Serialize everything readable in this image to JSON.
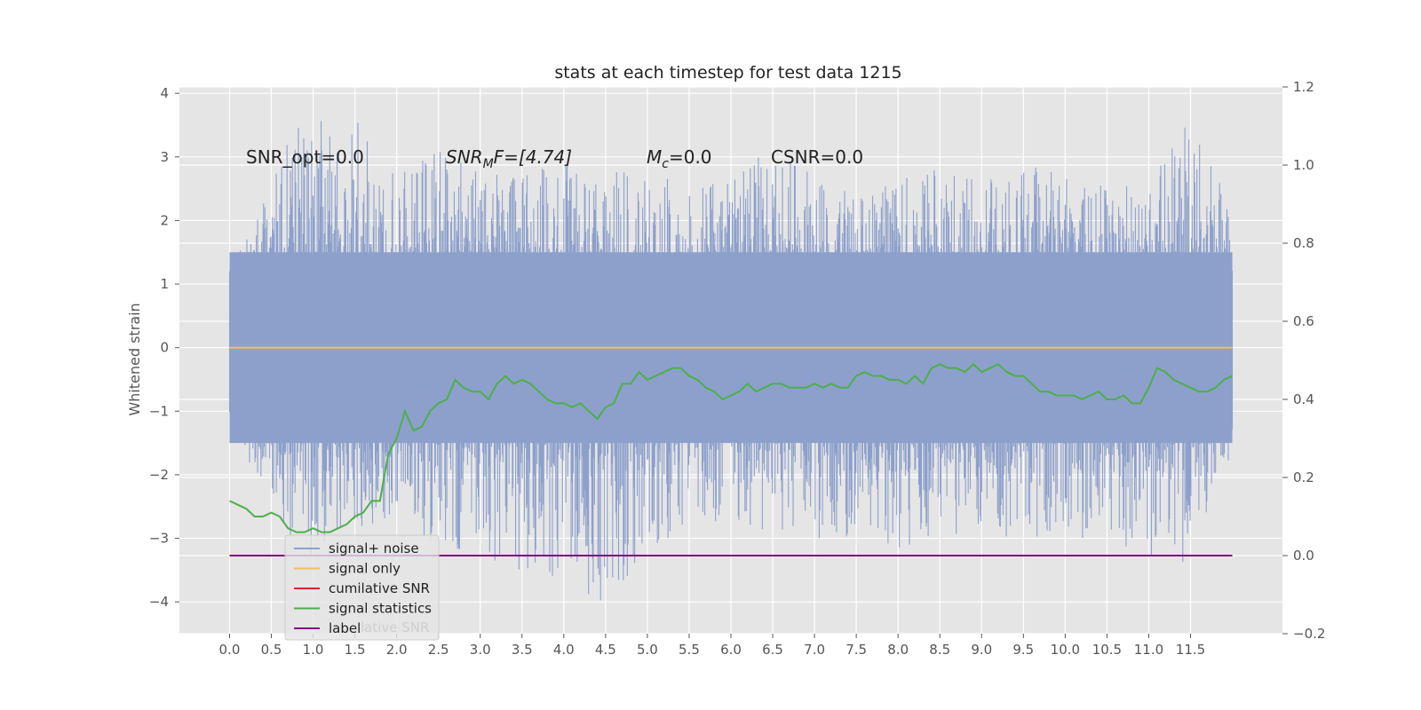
{
  "chart_data": {
    "type": "line",
    "title": "stats at each timestep for test data 1215",
    "ylabel": "Whitened strain",
    "xlim": [
      -0.6,
      12.6
    ],
    "ylim": [
      -4.5,
      4.1
    ],
    "ylim_right": [
      -0.2,
      1.2
    ],
    "x_ticks": [
      "0.0",
      "0.5",
      "1.0",
      "1.5",
      "2.0",
      "2.5",
      "3.0",
      "3.5",
      "4.0",
      "4.5",
      "5.0",
      "5.5",
      "6.0",
      "6.5",
      "7.0",
      "7.5",
      "8.0",
      "8.5",
      "9.0",
      "9.5",
      "10.0",
      "10.5",
      "11.0",
      "11.5"
    ],
    "y_ticks": [
      "4",
      "3",
      "2",
      "1",
      "0",
      "−1",
      "−2",
      "−3",
      "−4"
    ],
    "y_ticks_right": [
      "1.2",
      "1.0",
      "0.8",
      "0.6",
      "0.4",
      "0.2",
      "0.0",
      "−0.2"
    ],
    "grid": true,
    "annotations": {
      "snr_opt": "SNR_opt=0.0",
      "snr_mf_sym": "SNR",
      "snr_mf_sub": "M",
      "snr_mf_rest": "F=[4.74]",
      "mc_sym": "M",
      "mc_sub": "c",
      "mc_rest": "=0.0",
      "csnr": "CSNR=0.0"
    },
    "legend": {
      "position": "lower-left",
      "entries": [
        "signal+ noise",
        "signal only",
        "cumilative SNR",
        "signal statistics",
        "label"
      ],
      "hidden_text": "lative SNR"
    },
    "series": [
      {
        "name": "signal+ noise",
        "color": "#8da0cb",
        "x_range": [
          0.0,
          12.0
        ],
        "upper_envelope": [
          [
            0.0,
            1.3
          ],
          [
            0.5,
            2.6
          ],
          [
            0.8,
            3.6
          ],
          [
            1.5,
            3.7
          ],
          [
            2.0,
            2.7
          ],
          [
            2.5,
            3.2
          ],
          [
            3.0,
            2.8
          ],
          [
            4.0,
            2.9
          ],
          [
            5.0,
            2.7
          ],
          [
            5.5,
            2.6
          ],
          [
            6.0,
            2.6
          ],
          [
            6.5,
            3.2
          ],
          [
            7.0,
            2.7
          ],
          [
            7.5,
            2.5
          ],
          [
            8.0,
            2.7
          ],
          [
            8.5,
            2.9
          ],
          [
            9.0,
            2.7
          ],
          [
            9.5,
            2.8
          ],
          [
            10.0,
            3.0
          ],
          [
            10.5,
            2.6
          ],
          [
            11.0,
            2.7
          ],
          [
            11.5,
            3.6
          ],
          [
            12.0,
            2.3
          ]
        ],
        "lower_envelope": [
          [
            0.0,
            -0.9
          ],
          [
            0.5,
            -2.8
          ],
          [
            1.0,
            -3.3
          ],
          [
            1.5,
            -2.9
          ],
          [
            2.0,
            -2.6
          ],
          [
            2.5,
            -3.2
          ],
          [
            3.0,
            -3.2
          ],
          [
            3.5,
            -3.9
          ],
          [
            4.0,
            -3.6
          ],
          [
            4.4,
            -4.1
          ],
          [
            5.0,
            -3.3
          ],
          [
            5.5,
            -2.8
          ],
          [
            6.0,
            -2.8
          ],
          [
            6.5,
            -2.9
          ],
          [
            7.0,
            -3.0
          ],
          [
            7.5,
            -3.2
          ],
          [
            8.0,
            -3.2
          ],
          [
            8.5,
            -2.9
          ],
          [
            9.0,
            -3.0
          ],
          [
            9.5,
            -3.0
          ],
          [
            10.0,
            -3.0
          ],
          [
            10.5,
            -3.0
          ],
          [
            11.0,
            -3.4
          ],
          [
            11.5,
            -3.4
          ],
          [
            12.0,
            -1.9
          ]
        ]
      },
      {
        "name": "signal only",
        "color": "#f0c060",
        "axis": "left",
        "x": [
          0.0,
          12.0
        ],
        "y": [
          0.0,
          0.0
        ]
      },
      {
        "name": "cumilative SNR",
        "color": "#d62728",
        "axis": "right",
        "x": [
          0.0,
          12.0
        ],
        "y": [
          0.0,
          0.0
        ]
      },
      {
        "name": "signal statistics",
        "color": "#4daf4a",
        "axis": "right",
        "x": [
          0.0,
          0.1,
          0.2,
          0.3,
          0.4,
          0.5,
          0.6,
          0.7,
          0.8,
          0.9,
          1.0,
          1.1,
          1.2,
          1.3,
          1.4,
          1.5,
          1.6,
          1.7,
          1.8,
          1.9,
          2.0,
          2.1,
          2.2,
          2.3,
          2.4,
          2.5,
          2.6,
          2.7,
          2.8,
          2.9,
          3.0,
          3.1,
          3.2,
          3.3,
          3.4,
          3.5,
          3.6,
          3.7,
          3.8,
          3.9,
          4.0,
          4.1,
          4.2,
          4.3,
          4.4,
          4.5,
          4.6,
          4.7,
          4.8,
          4.9,
          5.0,
          5.1,
          5.2,
          5.3,
          5.4,
          5.5,
          5.6,
          5.7,
          5.8,
          5.9,
          6.0,
          6.1,
          6.2,
          6.3,
          6.4,
          6.5,
          6.6,
          6.7,
          6.8,
          6.9,
          7.0,
          7.1,
          7.2,
          7.3,
          7.4,
          7.5,
          7.6,
          7.7,
          7.8,
          7.9,
          8.0,
          8.1,
          8.2,
          8.3,
          8.4,
          8.5,
          8.6,
          8.7,
          8.8,
          8.9,
          9.0,
          9.1,
          9.2,
          9.3,
          9.4,
          9.5,
          9.6,
          9.7,
          9.8,
          9.9,
          10.0,
          10.1,
          10.2,
          10.3,
          10.4,
          10.5,
          10.6,
          10.7,
          10.8,
          10.9,
          11.0,
          11.1,
          11.2,
          11.3,
          11.4,
          11.5,
          11.6,
          11.7,
          11.8,
          11.9,
          12.0
        ],
        "y": [
          0.14,
          0.13,
          0.12,
          0.1,
          0.1,
          0.11,
          0.1,
          0.07,
          0.06,
          0.06,
          0.07,
          0.06,
          0.06,
          0.07,
          0.08,
          0.1,
          0.11,
          0.14,
          0.14,
          0.26,
          0.3,
          0.37,
          0.32,
          0.33,
          0.37,
          0.39,
          0.4,
          0.45,
          0.43,
          0.42,
          0.42,
          0.4,
          0.44,
          0.46,
          0.44,
          0.45,
          0.44,
          0.42,
          0.4,
          0.39,
          0.39,
          0.38,
          0.39,
          0.37,
          0.35,
          0.38,
          0.39,
          0.44,
          0.44,
          0.47,
          0.45,
          0.46,
          0.47,
          0.48,
          0.48,
          0.46,
          0.45,
          0.43,
          0.42,
          0.4,
          0.41,
          0.42,
          0.44,
          0.42,
          0.43,
          0.44,
          0.44,
          0.43,
          0.43,
          0.43,
          0.44,
          0.43,
          0.44,
          0.43,
          0.43,
          0.46,
          0.47,
          0.46,
          0.46,
          0.45,
          0.45,
          0.44,
          0.46,
          0.44,
          0.48,
          0.49,
          0.48,
          0.48,
          0.47,
          0.49,
          0.47,
          0.48,
          0.49,
          0.47,
          0.46,
          0.46,
          0.44,
          0.42,
          0.42,
          0.41,
          0.41,
          0.41,
          0.4,
          0.41,
          0.42,
          0.4,
          0.4,
          0.41,
          0.39,
          0.39,
          0.43,
          0.48,
          0.47,
          0.45,
          0.44,
          0.43,
          0.42,
          0.42,
          0.43,
          0.45,
          0.46
        ],
        "y_shape_note": ""
      },
      {
        "name": "label",
        "color": "#800080",
        "axis": "right",
        "x": [
          0.0,
          12.0
        ],
        "y": [
          0.0,
          0.0
        ]
      }
    ]
  }
}
